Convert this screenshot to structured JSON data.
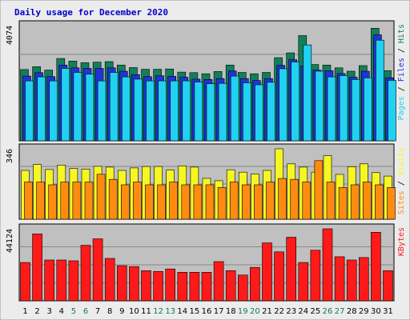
{
  "title": "Daily usage for December 2020",
  "colors": {
    "background": "#ececec",
    "panel": "#c0c0c0",
    "title": "#0000cc",
    "hits": "#11805a",
    "files": "#2034d8",
    "pages": "#22d0f2",
    "visits": "#f6f622",
    "sites": "#ff8c10",
    "kbytes": "#ff1a1a",
    "weekday_label": "#000000",
    "weekend_label": "#0f7a5a"
  },
  "chart_data": [
    {
      "type": "bar",
      "panel": "hits-files-pages",
      "max_label": "4074",
      "legend": [
        "Pages",
        "Files",
        "Hits"
      ],
      "ylim": [
        0,
        4074
      ],
      "categories": [
        "1",
        "2",
        "3",
        "4",
        "5",
        "6",
        "7",
        "8",
        "9",
        "10",
        "11",
        "12",
        "13",
        "14",
        "15",
        "16",
        "17",
        "18",
        "19",
        "20",
        "21",
        "22",
        "23",
        "24",
        "25",
        "26",
        "27",
        "28",
        "29",
        "30",
        "31"
      ],
      "series": [
        {
          "name": "Hits",
          "values": [
            2520,
            2620,
            2500,
            2910,
            2820,
            2760,
            2780,
            2800,
            2680,
            2590,
            2530,
            2530,
            2540,
            2430,
            2410,
            2370,
            2450,
            2680,
            2420,
            2370,
            2420,
            2940,
            3110,
            3720,
            2700,
            2680,
            2580,
            2460,
            2660,
            3980,
            2480
          ]
        },
        {
          "name": "Files",
          "values": [
            2290,
            2410,
            2270,
            2680,
            2580,
            2560,
            2560,
            2580,
            2460,
            2340,
            2270,
            2300,
            2280,
            2250,
            2180,
            2170,
            2200,
            2470,
            2200,
            2130,
            2200,
            2670,
            2870,
            2640,
            2500,
            2480,
            2380,
            2250,
            2460,
            3750,
            2230
          ]
        },
        {
          "name": "Pages",
          "values": [
            2120,
            2260,
            2120,
            2560,
            2420,
            2360,
            2120,
            2420,
            2260,
            2180,
            2120,
            2120,
            2120,
            2120,
            2080,
            2020,
            2030,
            2290,
            2050,
            1980,
            2070,
            2550,
            2790,
            3390,
            2460,
            2260,
            2310,
            2170,
            2230,
            3560,
            2140
          ]
        }
      ]
    },
    {
      "type": "bar",
      "panel": "visits-sites",
      "max_label": "346",
      "legend": [
        "Sites",
        "Visits"
      ],
      "ylim": [
        0,
        346
      ],
      "categories": [
        "1",
        "2",
        "3",
        "4",
        "5",
        "6",
        "7",
        "8",
        "9",
        "10",
        "11",
        "12",
        "13",
        "14",
        "15",
        "16",
        "17",
        "18",
        "19",
        "20",
        "21",
        "22",
        "23",
        "24",
        "25",
        "26",
        "27",
        "28",
        "29",
        "30",
        "31"
      ],
      "series": [
        {
          "name": "Visits",
          "values": [
            240,
            269,
            244,
            266,
            249,
            246,
            260,
            256,
            240,
            252,
            259,
            259,
            241,
            262,
            256,
            201,
            189,
            243,
            231,
            222,
            240,
            346,
            272,
            256,
            231,
            312,
            220,
            258,
            272,
            229,
            212
          ]
        },
        {
          "name": "Sites",
          "values": [
            183,
            183,
            169,
            183,
            183,
            183,
            221,
            196,
            169,
            183,
            169,
            169,
            183,
            169,
            169,
            169,
            156,
            183,
            169,
            169,
            183,
            200,
            196,
            183,
            288,
            183,
            156,
            169,
            183,
            169,
            156
          ]
        }
      ]
    },
    {
      "type": "bar",
      "panel": "kbytes",
      "max_label": "44124",
      "legend": [
        "KBytes"
      ],
      "ylim": [
        0,
        44124
      ],
      "categories": [
        "1",
        "2",
        "3",
        "4",
        "5",
        "6",
        "7",
        "8",
        "9",
        "10",
        "11",
        "12",
        "13",
        "14",
        "15",
        "16",
        "17",
        "18",
        "19",
        "20",
        "21",
        "22",
        "23",
        "24",
        "25",
        "26",
        "27",
        "28",
        "29",
        "30",
        "31"
      ],
      "series": [
        {
          "name": "KBytes",
          "values": [
            23500,
            41000,
            25000,
            25000,
            24500,
            34000,
            38000,
            26000,
            21500,
            21000,
            18500,
            18000,
            19500,
            17500,
            17500,
            17500,
            24000,
            18500,
            15800,
            20500,
            35500,
            30000,
            39000,
            23500,
            31000,
            44124,
            27000,
            25000,
            26500,
            42000,
            18500
          ]
        }
      ]
    }
  ],
  "weekend_days": [
    "5",
    "6",
    "12",
    "13",
    "19",
    "20",
    "26",
    "27"
  ]
}
